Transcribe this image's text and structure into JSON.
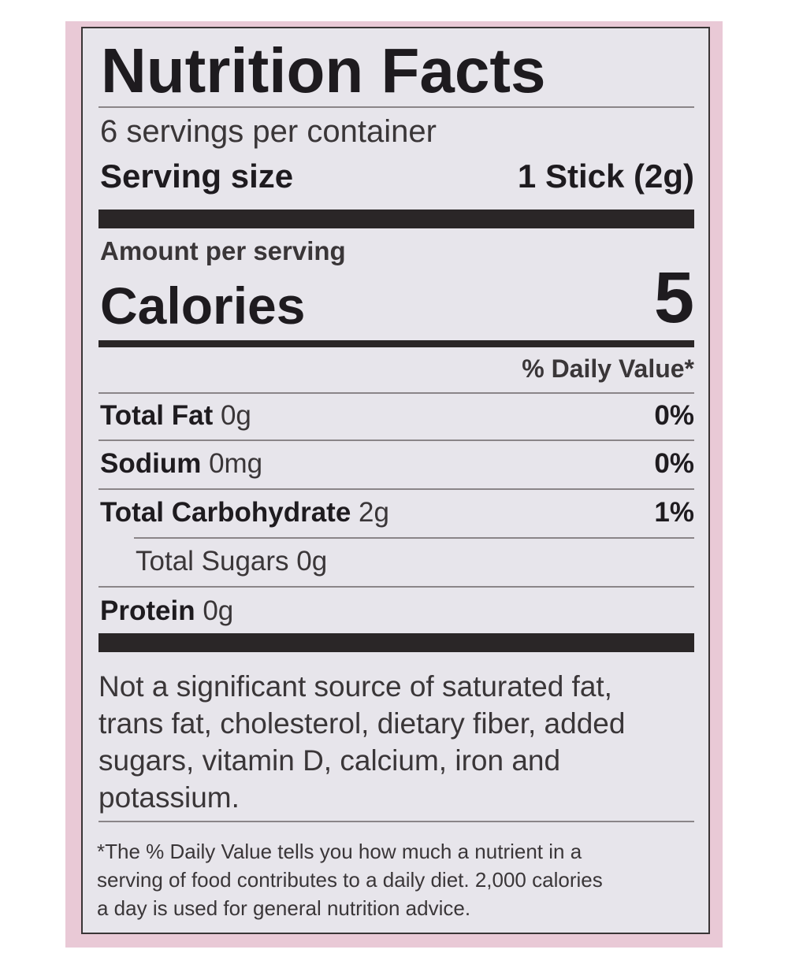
{
  "title": "Nutrition Facts",
  "servings_per_container": "6 servings per container",
  "serving_size": {
    "label": "Serving size",
    "value": "1 Stick (2g)"
  },
  "amount_per_serving": "Amount per serving",
  "calories": {
    "label": "Calories",
    "value": "5"
  },
  "daily_value_header": "% Daily Value*",
  "nutrients": [
    {
      "label": "Total Fat",
      "amount": "0g",
      "dv": "0%"
    },
    {
      "label": "Sodium",
      "amount": "0mg",
      "dv": "0%"
    },
    {
      "label": "Total Carbohydrate",
      "amount": "2g",
      "dv": "1%"
    },
    {
      "label": "Total Sugars",
      "amount": "0g",
      "dv": ""
    },
    {
      "label": "Protein",
      "amount": "0g",
      "dv": ""
    }
  ],
  "not_significant": [
    "Not a significant source of saturated fat,",
    "trans fat, cholesterol, dietary fiber, added",
    "sugars, vitamin D, calcium, iron and",
    "potassium."
  ],
  "footnote": [
    "*The % Daily Value tells you how much a nutrient in a",
    "serving of food contributes to a daily diet. 2,000 calories",
    "a day is used for general nutrition advice."
  ],
  "colors": {
    "border_pink": "#e9c9d6",
    "panel": "#e7e5eb",
    "ink": "#1e1b1f"
  }
}
